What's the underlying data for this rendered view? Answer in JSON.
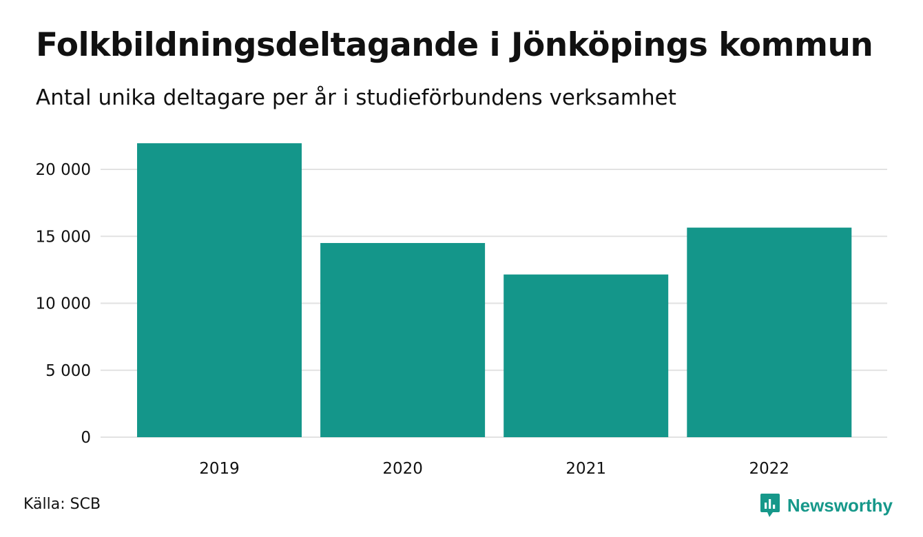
{
  "header": {
    "title": "Folkbildningsdeltagande i Jönköpings kommun",
    "subtitle": "Antal unika deltagare per år i studieförbundens verksamhet"
  },
  "footer": {
    "source": "Källa: SCB",
    "brand": "Newsworthy",
    "brand_icon": "newsworthy-logo-icon"
  },
  "colors": {
    "bar": "#14968a",
    "grid": "#e2e2e2",
    "brand": "#16988a"
  },
  "chart_data": {
    "type": "bar",
    "categories": [
      "2019",
      "2020",
      "2021",
      "2022"
    ],
    "values": [
      21950,
      14500,
      12150,
      15650
    ],
    "ylim": [
      0,
      22000
    ],
    "yticks": [
      0,
      5000,
      10000,
      15000,
      20000
    ],
    "ytick_labels": [
      "0",
      "5 000",
      "10 000",
      "15 000",
      "20 000"
    ],
    "grid": true,
    "legend": "none"
  }
}
